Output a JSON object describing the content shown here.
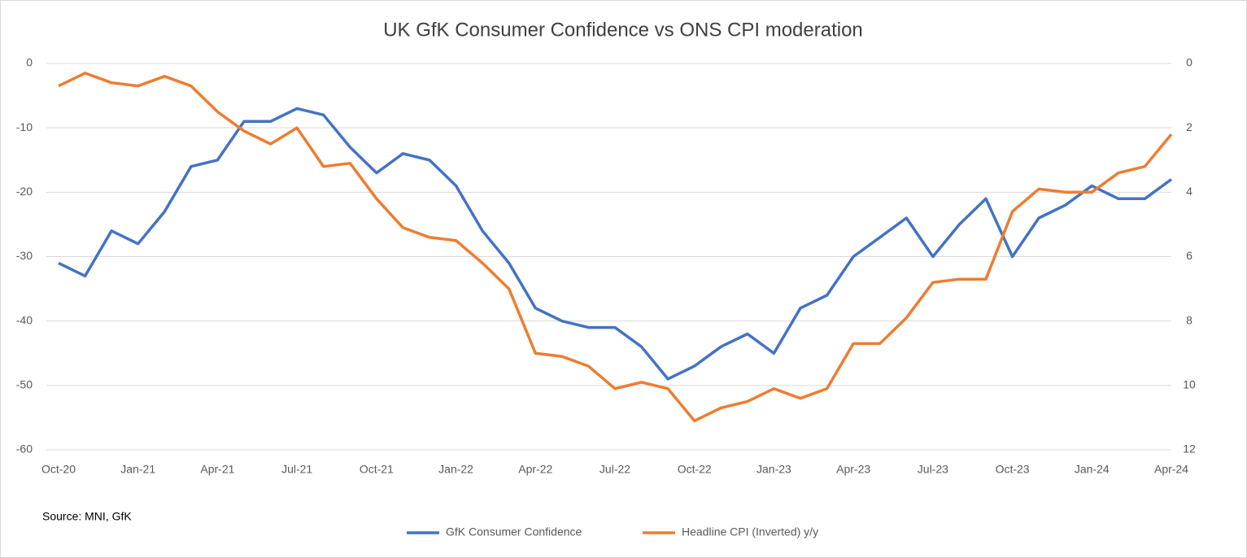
{
  "chart_data": {
    "type": "line",
    "title": "UK GfK Consumer Confidence vs ONS CPI moderation",
    "annotation": "Source: MNI, GfK",
    "categories": [
      "Oct-20",
      null,
      null,
      "Jan-21",
      null,
      null,
      "Apr-21",
      null,
      null,
      "Jul-21",
      null,
      null,
      "Oct-21",
      null,
      null,
      "Jan-22",
      null,
      null,
      "Apr-22",
      null,
      null,
      "Jul-22",
      null,
      null,
      "Oct-22",
      null,
      null,
      "Jan-23",
      null,
      null,
      "Apr-23",
      null,
      null,
      "Jul-23",
      null,
      null,
      "Oct-23",
      null,
      null,
      "Jan-24",
      null,
      null,
      "Apr-24"
    ],
    "series": [
      {
        "name": "GfK Consumer Confidence",
        "color": "#4472c4",
        "axis": "y",
        "values": [
          -31,
          -33,
          -26,
          -28,
          -23,
          -16,
          -15,
          -9,
          -9,
          -7,
          -8,
          -13,
          -17,
          -14,
          -15,
          -19,
          -26,
          -31,
          -38,
          -40,
          -41,
          -41,
          -44,
          -49,
          -47,
          -44,
          -42,
          -45,
          -38,
          -36,
          -30,
          -27,
          -24,
          -30,
          -25,
          -21,
          -30,
          -24,
          -22,
          -19,
          -21,
          -21,
          -18
        ]
      },
      {
        "name": "Headline CPI (Inverted) y/y",
        "color": "#ed7d31",
        "axis": "y2",
        "values": [
          0.7,
          0.3,
          0.6,
          0.7,
          0.4,
          0.7,
          1.5,
          2.1,
          2.5,
          2.0,
          3.2,
          3.1,
          4.2,
          5.1,
          5.4,
          5.5,
          6.2,
          7.0,
          9.0,
          9.1,
          9.4,
          10.1,
          9.9,
          10.1,
          11.1,
          10.7,
          10.5,
          10.1,
          10.4,
          10.1,
          8.7,
          8.7,
          7.9,
          6.8,
          6.7,
          6.7,
          4.6,
          3.9,
          4.0,
          4.0,
          3.4,
          3.2,
          2.2
        ]
      }
    ],
    "ylim": [
      -60,
      0
    ],
    "yticks": [
      0,
      -10,
      -20,
      -30,
      -40,
      -50,
      -60
    ],
    "y2lim": [
      12,
      0
    ],
    "y2ticks": [
      0,
      2,
      4,
      6,
      8,
      10,
      12
    ],
    "grid": true,
    "legend": "bottom"
  }
}
